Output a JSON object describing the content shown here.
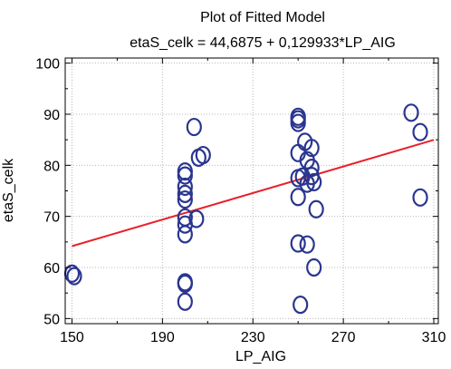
{
  "chart_data": {
    "type": "scatter",
    "title": "Plot of Fitted Model",
    "subtitle": "etaS_celk = 44,6875 + 0,129933*LP_AIG",
    "xlabel": "LP_AIG",
    "ylabel": "etaS_celk",
    "xlim": [
      147,
      312
    ],
    "ylim": [
      49,
      101
    ],
    "xticks": [
      150,
      190,
      230,
      270,
      310
    ],
    "yticks": [
      50,
      60,
      70,
      80,
      90,
      100
    ],
    "grid": true,
    "legend": "none",
    "fit_line": {
      "intercept": 44.6875,
      "slope": 0.129933,
      "x_range": [
        150,
        310
      ]
    },
    "points": [
      {
        "x": 150,
        "y": 58.8
      },
      {
        "x": 151,
        "y": 58.3
      },
      {
        "x": 200,
        "y": 78.8
      },
      {
        "x": 200,
        "y": 78.0
      },
      {
        "x": 200,
        "y": 75.8
      },
      {
        "x": 200,
        "y": 74.4
      },
      {
        "x": 200,
        "y": 73.3
      },
      {
        "x": 200,
        "y": 69.8
      },
      {
        "x": 200,
        "y": 68.4
      },
      {
        "x": 200,
        "y": 66.5
      },
      {
        "x": 200,
        "y": 57.1
      },
      {
        "x": 200,
        "y": 56.8
      },
      {
        "x": 200,
        "y": 53.3
      },
      {
        "x": 204,
        "y": 87.5
      },
      {
        "x": 206,
        "y": 81.5
      },
      {
        "x": 208,
        "y": 82.0
      },
      {
        "x": 205,
        "y": 69.5
      },
      {
        "x": 250,
        "y": 89.5
      },
      {
        "x": 250,
        "y": 89.0
      },
      {
        "x": 250,
        "y": 88.3
      },
      {
        "x": 250,
        "y": 82.4
      },
      {
        "x": 250,
        "y": 77.5
      },
      {
        "x": 250,
        "y": 73.8
      },
      {
        "x": 250,
        "y": 64.7
      },
      {
        "x": 251,
        "y": 52.7
      },
      {
        "x": 252,
        "y": 77.8
      },
      {
        "x": 253,
        "y": 84.6
      },
      {
        "x": 254,
        "y": 81.0
      },
      {
        "x": 254,
        "y": 76.4
      },
      {
        "x": 254,
        "y": 64.5
      },
      {
        "x": 256,
        "y": 83.4
      },
      {
        "x": 256,
        "y": 79.5
      },
      {
        "x": 256,
        "y": 77.9
      },
      {
        "x": 257,
        "y": 76.7
      },
      {
        "x": 257,
        "y": 60.0
      },
      {
        "x": 258,
        "y": 71.4
      },
      {
        "x": 300,
        "y": 90.3
      },
      {
        "x": 304,
        "y": 86.5
      },
      {
        "x": 304,
        "y": 73.7
      }
    ],
    "colors": {
      "points": "#2a3590",
      "fit_line": "#e8202a",
      "grid": "#b8b8b8",
      "frame": "#000000"
    }
  }
}
